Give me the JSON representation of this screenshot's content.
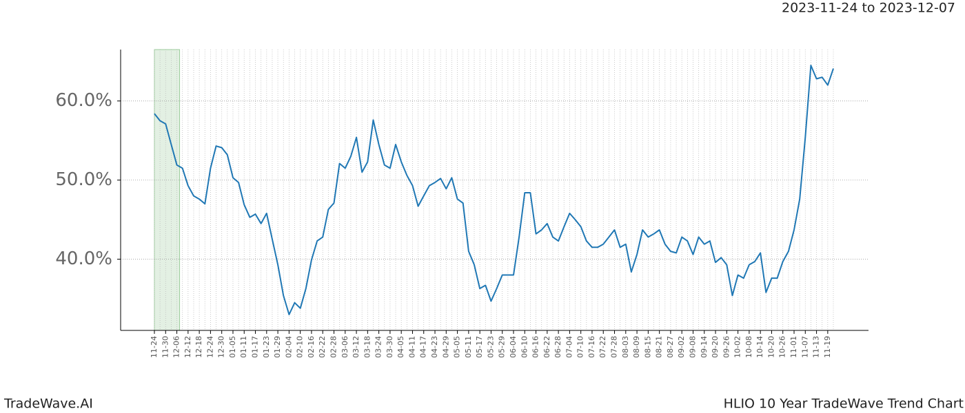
{
  "chart_data": {
    "type": "line",
    "title": "HLIO 10 Year TradeWave Trend Chart",
    "subtitle": "2023-11-24 to 2023-12-07",
    "source": "TradeWave.AI",
    "categories": [
      "11-24",
      null,
      "11-30",
      null,
      "12-06",
      null,
      "12-12",
      null,
      "12-18",
      null,
      "12-24",
      null,
      "12-30",
      null,
      "01-05",
      null,
      "01-11",
      null,
      "01-17",
      null,
      "01-23",
      null,
      "01-29",
      null,
      "02-04",
      null,
      "02-10",
      null,
      "02-16",
      null,
      "02-22",
      null,
      "02-28",
      null,
      "03-06",
      null,
      "03-12",
      null,
      "03-18",
      null,
      "03-24",
      null,
      "03-30",
      null,
      "04-05",
      null,
      "04-11",
      null,
      "04-17",
      null,
      "04-23",
      null,
      "04-29",
      null,
      "05-05",
      null,
      "05-11",
      null,
      "05-17",
      null,
      "05-23",
      null,
      "05-29",
      null,
      "06-04",
      null,
      "06-10",
      null,
      "06-16",
      null,
      "06-22",
      null,
      "06-28",
      null,
      "07-04",
      null,
      "07-10",
      null,
      "07-16",
      null,
      "07-22",
      null,
      "07-28",
      null,
      "08-03",
      null,
      "08-09",
      null,
      "08-15",
      null,
      "08-21",
      null,
      "08-27",
      null,
      "09-02",
      null,
      "09-08",
      null,
      "09-14",
      null,
      "09-20",
      null,
      "09-26",
      null,
      "10-02",
      null,
      "10-08",
      null,
      "10-14",
      null,
      "10-20",
      null,
      "10-26",
      null,
      "11-01",
      null,
      "11-07",
      null,
      "11-13",
      null,
      "11-19",
      null
    ],
    "values": [
      58.4,
      57.5,
      57.1,
      54.5,
      51.9,
      51.5,
      49.3,
      48.0,
      47.6,
      47.0,
      51.5,
      54.3,
      54.1,
      53.2,
      50.3,
      49.7,
      46.9,
      45.3,
      45.7,
      44.5,
      45.8,
      42.5,
      39.3,
      35.4,
      33.0,
      34.5,
      33.8,
      36.3,
      39.9,
      42.3,
      42.8,
      46.3,
      47.1,
      52.1,
      51.5,
      53.0,
      55.4,
      51.0,
      52.3,
      57.6,
      54.5,
      51.9,
      51.5,
      54.5,
      52.3,
      50.6,
      49.3,
      46.7,
      48.0,
      49.3,
      49.7,
      50.2,
      48.9,
      50.3,
      47.6,
      47.1,
      41.0,
      39.3,
      36.3,
      36.7,
      34.7,
      36.3,
      38.0,
      38.0,
      38.0,
      42.8,
      48.4,
      48.4,
      43.2,
      43.7,
      44.5,
      42.8,
      42.3,
      44.1,
      45.8,
      45.0,
      44.1,
      42.3,
      41.5,
      41.5,
      41.9,
      42.8,
      43.7,
      41.5,
      41.9,
      38.4,
      40.6,
      43.7,
      42.8,
      43.2,
      43.7,
      41.9,
      41.0,
      40.8,
      42.8,
      42.3,
      40.6,
      42.8,
      41.9,
      42.3,
      39.6,
      40.2,
      39.3,
      35.4,
      38.0,
      37.6,
      39.3,
      39.7,
      40.8,
      35.8,
      37.6,
      37.6,
      39.7,
      41.0,
      43.7,
      47.6,
      55.4,
      64.5,
      62.8,
      63.0,
      62.0,
      64.1
    ],
    "color": "#1f77b4",
    "highlight": {
      "start": "11-24",
      "end": "12-06",
      "color": "#e3f0e3"
    },
    "ylim": [
      31.0,
      66.5
    ],
    "yticks": [
      {
        "value": 40,
        "label": "40.0%"
      },
      {
        "value": 50,
        "label": "50.0%"
      },
      {
        "value": 60,
        "label": "60.0%"
      }
    ],
    "grid": true
  }
}
